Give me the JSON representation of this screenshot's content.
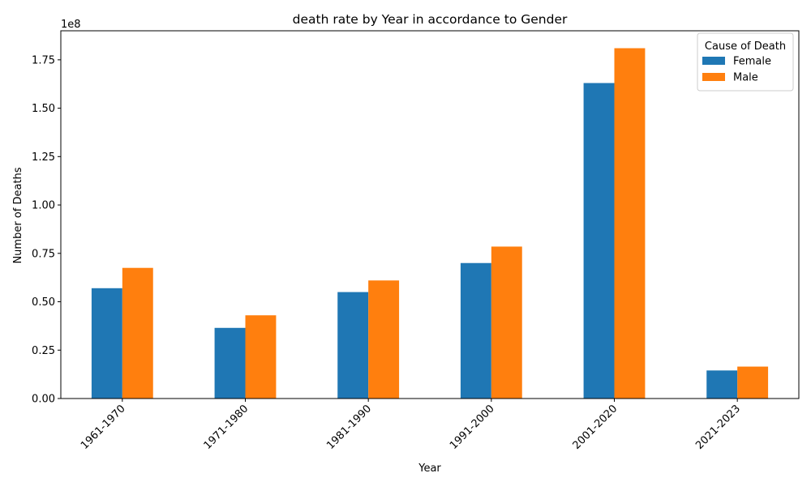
{
  "chart_data": {
    "type": "bar",
    "title": "death rate by Year in accordance to Gender",
    "xlabel": "Year",
    "ylabel": "Number of Deaths",
    "y_scale_label": "1e8",
    "categories": [
      "1961-1970",
      "1971-1980",
      "1981-1990",
      "1991-2000",
      "2001-2020",
      "2021-2023"
    ],
    "series": [
      {
        "name": "Female",
        "color": "#1f77b4",
        "values": [
          57000000,
          36500000,
          55000000,
          70000000,
          163000000,
          14500000
        ]
      },
      {
        "name": "Male",
        "color": "#ff7f0e",
        "values": [
          67500000,
          43000000,
          61000000,
          78500000,
          181000000,
          16500000
        ]
      }
    ],
    "ylim": [
      0,
      190000000
    ],
    "y_ticks": [
      0,
      25000000,
      50000000,
      75000000,
      100000000,
      125000000,
      150000000,
      175000000
    ],
    "y_tick_labels": [
      "0.00",
      "0.25",
      "0.50",
      "0.75",
      "1.00",
      "1.25",
      "1.50",
      "1.75"
    ],
    "legend": {
      "title": "Cause of Death",
      "position": "top-right"
    },
    "grid": false
  }
}
